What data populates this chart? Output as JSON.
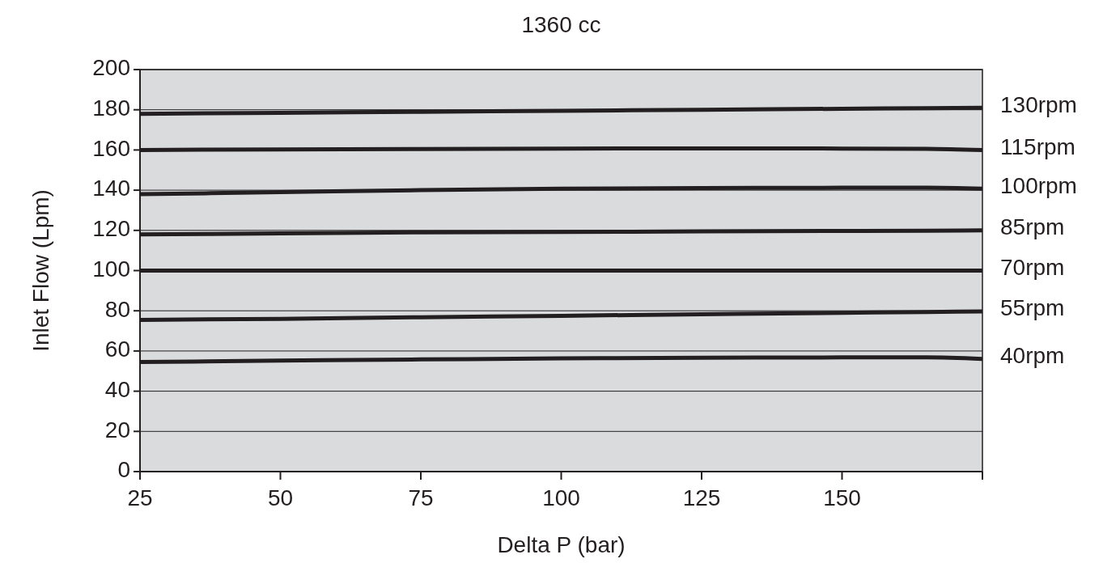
{
  "chart_data": {
    "type": "line",
    "title": "1360 cc",
    "xlabel": "Delta P (bar)",
    "ylabel": "Inlet Flow (Lpm)",
    "xlim": [
      25,
      175
    ],
    "xticks": [
      25,
      50,
      75,
      100,
      125,
      150,
      {
        "value": 175,
        "label": null
      }
    ],
    "ylim": [
      0,
      200
    ],
    "yticks": [
      0,
      20,
      40,
      60,
      80,
      100,
      120,
      140,
      160,
      180,
      200
    ],
    "grid": "y",
    "marker": "none",
    "line_style": "solid",
    "x": [
      25,
      50,
      75,
      100,
      125,
      150,
      165,
      175
    ],
    "series": [
      {
        "name": "130rpm",
        "color": "#231f20",
        "values": [
          178,
          178.5,
          179,
          179.5,
          180,
          180.5,
          180.8,
          181
        ]
      },
      {
        "name": "115rpm",
        "color": "#231f20",
        "values": [
          160,
          160.3,
          160.5,
          160.7,
          160.8,
          160.7,
          160.6,
          160
        ]
      },
      {
        "name": "100rpm",
        "color": "#231f20",
        "values": [
          138,
          139,
          140,
          140.7,
          141,
          141.2,
          141.2,
          140.7
        ]
      },
      {
        "name": "85rpm",
        "color": "#231f20",
        "values": [
          118,
          118.5,
          119,
          119.2,
          119.5,
          119.7,
          119.8,
          120
        ]
      },
      {
        "name": "70rpm",
        "color": "#231f20",
        "values": [
          100,
          100,
          100,
          100,
          100,
          100,
          100,
          100
        ]
      },
      {
        "name": "55rpm",
        "color": "#231f20",
        "values": [
          75.5,
          76,
          76.8,
          77.5,
          78.3,
          79,
          79.4,
          79.7
        ]
      },
      {
        "name": "40rpm",
        "color": "#231f20",
        "values": [
          54.5,
          55.2,
          55.8,
          56.3,
          56.6,
          56.8,
          56.8,
          56
        ]
      }
    ]
  }
}
